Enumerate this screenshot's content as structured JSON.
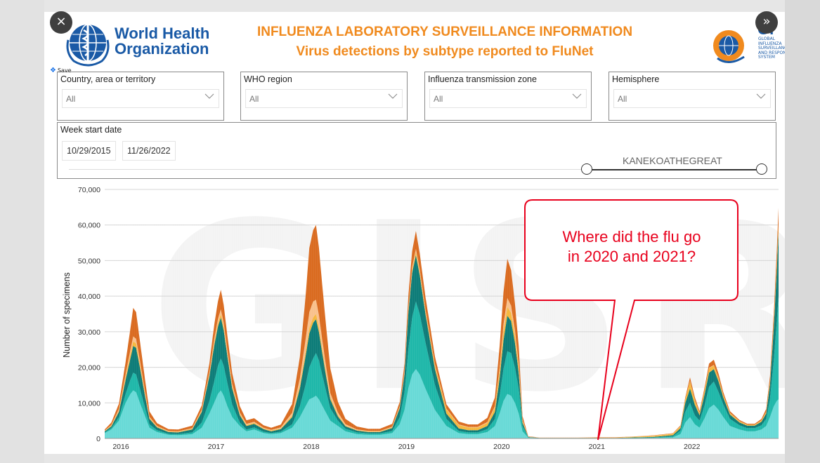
{
  "header": {
    "org_name_line1": "World Health",
    "org_name_line2": "Organization",
    "title": "INFLUENZA LABORATORY SURVEILLANCE INFORMATION",
    "subtitle": "Virus detections by subtype reported to FluNet",
    "gisrs_name": "GI",
    "gisrs_sub": "GLOBAL INFLUENZA SURVEILLANCE AND RESPONSE SYSTEM"
  },
  "toolbar": {
    "save_label": "Save",
    "close_icon": "×",
    "expand_icon": "»"
  },
  "filters": [
    {
      "label": "Country, area or territory",
      "value": "All"
    },
    {
      "label": "WHO region",
      "value": "All"
    },
    {
      "label": "Influenza transmission zone",
      "value": "All"
    },
    {
      "label": "Hemisphere",
      "value": "All"
    }
  ],
  "week_filter": {
    "label": "Week start date",
    "start": "10/29/2015",
    "end": "11/26/2022",
    "overlay_text": "KANEKOATHEGREAT"
  },
  "watermark": "GISRS",
  "callout": {
    "line1": "Where did the flu go",
    "line2": "in 2020 and 2021?"
  },
  "colors": {
    "title_orange": "#f08a1e",
    "who_blue": "#1a5aa6",
    "callout_red": "#e8001c",
    "series_light": "#66d9d6",
    "series_mid": "#1bb6a8",
    "series_dark": "#0a7a76",
    "series_yellow": "#f6b63b",
    "series_peach": "#f9c08a",
    "series_orange": "#d9691c"
  },
  "chart_data": {
    "type": "area",
    "ylabel": "Number of specimens",
    "ylim": [
      0,
      70000
    ],
    "yticks": [
      0,
      10000,
      20000,
      30000,
      40000,
      50000,
      60000,
      70000
    ],
    "ytick_labels": [
      "0",
      "10,000",
      "20,000",
      "30,000",
      "40,000",
      "50,000",
      "60,000",
      "70,000"
    ],
    "xlim": [
      2015.83,
      2022.91
    ],
    "xticks": [
      2016,
      2017,
      2018,
      2019,
      2020,
      2021,
      2022
    ],
    "xtick_labels": [
      "2016",
      "2017",
      "2018",
      "2019",
      "2020",
      "2021",
      "2022"
    ],
    "stacked": true,
    "x": [
      2015.83,
      2015.9,
      2015.98,
      2016.05,
      2016.1,
      2016.13,
      2016.16,
      2016.2,
      2016.25,
      2016.3,
      2016.38,
      2016.5,
      2016.6,
      2016.75,
      2016.85,
      2016.93,
      2016.98,
      2017.02,
      2017.05,
      2017.08,
      2017.12,
      2017.17,
      2017.25,
      2017.32,
      2017.4,
      2017.5,
      2017.58,
      2017.68,
      2017.8,
      2017.88,
      2017.94,
      2017.98,
      2018.02,
      2018.05,
      2018.08,
      2018.11,
      2018.15,
      2018.2,
      2018.28,
      2018.36,
      2018.48,
      2018.6,
      2018.72,
      2018.85,
      2018.93,
      2018.98,
      2019.02,
      2019.06,
      2019.1,
      2019.14,
      2019.2,
      2019.3,
      2019.42,
      2019.55,
      2019.65,
      2019.75,
      2019.85,
      2019.93,
      2019.98,
      2020.02,
      2020.06,
      2020.1,
      2020.14,
      2020.18,
      2020.22,
      2020.28,
      2020.4,
      2020.6,
      2020.8,
      2021.0,
      2021.2,
      2021.4,
      2021.6,
      2021.8,
      2021.88,
      2021.93,
      2021.98,
      2022.03,
      2022.08,
      2022.13,
      2022.18,
      2022.23,
      2022.28,
      2022.33,
      2022.4,
      2022.5,
      2022.58,
      2022.66,
      2022.73,
      2022.78,
      2022.82,
      2022.86,
      2022.89,
      2022.91
    ],
    "series": [
      {
        "name": "",
        "values": [
          1500,
          2500,
          5000,
          10000,
          12500,
          13500,
          13000,
          10000,
          6500,
          3000,
          1800,
          1000,
          900,
          1200,
          3000,
          7000,
          10000,
          12500,
          13500,
          12000,
          9000,
          6000,
          3500,
          2000,
          2500,
          1500,
          1200,
          1500,
          3000,
          6000,
          9000,
          11000,
          11500,
          12000,
          11000,
          9500,
          7500,
          5000,
          3500,
          2000,
          1200,
          1000,
          1000,
          1500,
          4000,
          8000,
          14000,
          18000,
          19500,
          18000,
          14000,
          8000,
          3500,
          1500,
          1200,
          1200,
          1800,
          3500,
          7000,
          10500,
          12500,
          12000,
          10000,
          7000,
          2000,
          200,
          50,
          50,
          50,
          50,
          50,
          100,
          150,
          300,
          1200,
          4500,
          6000,
          4000,
          3000,
          5500,
          8500,
          9500,
          8000,
          6000,
          3500,
          2500,
          2000,
          2000,
          2500,
          3500,
          6000,
          9000,
          10500,
          11000
        ]
      },
      {
        "name": "",
        "values": [
          200,
          400,
          1000,
          2500,
          4000,
          5000,
          5000,
          4000,
          2500,
          1000,
          500,
          300,
          300,
          500,
          1500,
          3500,
          6000,
          8000,
          9000,
          8500,
          6500,
          3500,
          1000,
          500,
          600,
          400,
          300,
          400,
          1000,
          3000,
          6000,
          9000,
          11000,
          12000,
          11000,
          9000,
          6500,
          3500,
          1500,
          700,
          500,
          400,
          400,
          600,
          2000,
          5000,
          11000,
          16000,
          19000,
          17000,
          13000,
          7000,
          2000,
          600,
          500,
          500,
          800,
          2000,
          5000,
          9000,
          12000,
          12000,
          10000,
          7000,
          1500,
          100,
          50,
          50,
          50,
          50,
          50,
          100,
          150,
          300,
          1000,
          3000,
          4000,
          2500,
          2000,
          3500,
          6000,
          6500,
          5000,
          3500,
          2000,
          1200,
          900,
          900,
          1200,
          2000,
          5000,
          13000,
          22000,
          29000
        ]
      },
      {
        "name": "",
        "values": [
          300,
          500,
          1500,
          4000,
          6000,
          7500,
          7500,
          6000,
          3500,
          1500,
          800,
          500,
          500,
          800,
          3000,
          7000,
          10000,
          11000,
          11500,
          10000,
          7500,
          4500,
          2000,
          1000,
          1000,
          700,
          500,
          700,
          2000,
          5000,
          8000,
          9500,
          10000,
          9500,
          8000,
          6500,
          4500,
          2500,
          1200,
          700,
          500,
          400,
          400,
          800,
          2500,
          5000,
          10000,
          12500,
          13000,
          11000,
          8000,
          4500,
          1500,
          700,
          600,
          600,
          900,
          2000,
          5000,
          8000,
          10000,
          9000,
          7000,
          4500,
          1000,
          100,
          50,
          50,
          50,
          50,
          50,
          100,
          150,
          300,
          700,
          2500,
          4000,
          3000,
          1500,
          3000,
          4000,
          3500,
          3000,
          2000,
          1200,
          800,
          700,
          700,
          1000,
          1500,
          4000,
          9000,
          14000,
          18000
        ]
      },
      {
        "name": "",
        "values": [
          100,
          200,
          300,
          800,
          1200,
          1300,
          1200,
          900,
          600,
          300,
          200,
          150,
          150,
          200,
          300,
          500,
          800,
          900,
          1000,
          900,
          700,
          600,
          400,
          300,
          300,
          200,
          200,
          200,
          400,
          800,
          1200,
          1500,
          1500,
          1500,
          1300,
          1100,
          900,
          600,
          400,
          200,
          150,
          150,
          150,
          200,
          300,
          500,
          700,
          800,
          900,
          800,
          700,
          900,
          1200,
          1000,
          800,
          800,
          900,
          1200,
          2000,
          2500,
          2500,
          2300,
          2000,
          1500,
          500,
          50,
          30,
          30,
          30,
          100,
          100,
          200,
          300,
          400,
          500,
          1000,
          2000,
          1200,
          600,
          1000,
          1200,
          1000,
          800,
          600,
          400,
          300,
          250,
          250,
          300,
          400,
          800,
          1200,
          1600,
          2000
        ]
      },
      {
        "name": "",
        "values": [
          100,
          200,
          500,
          800,
          1200,
          1400,
          1300,
          1000,
          700,
          300,
          200,
          150,
          150,
          200,
          300,
          600,
          1000,
          1200,
          1300,
          1200,
          1000,
          700,
          400,
          300,
          300,
          200,
          200,
          300,
          800,
          2000,
          3500,
          4500,
          4500,
          4000,
          3500,
          2800,
          2000,
          1200,
          700,
          400,
          200,
          150,
          150,
          200,
          300,
          500,
          700,
          800,
          900,
          800,
          600,
          400,
          200,
          150,
          150,
          150,
          200,
          400,
          1000,
          2000,
          2500,
          2000,
          1500,
          1000,
          300,
          50,
          30,
          30,
          30,
          30,
          30,
          30,
          50,
          80,
          100,
          100,
          150,
          150,
          100,
          100,
          150,
          150,
          150,
          100,
          80,
          60,
          50,
          50,
          80,
          100,
          150,
          200,
          250,
          300
        ]
      },
      {
        "name": "",
        "values": [
          300,
          700,
          1500,
          3500,
          6000,
          8000,
          7500,
          5500,
          3500,
          1500,
          800,
          500,
          500,
          700,
          1200,
          2500,
          4000,
          5000,
          5500,
          5000,
          4000,
          3000,
          1800,
          1000,
          1000,
          700,
          600,
          800,
          2500,
          6000,
          12000,
          18000,
          20000,
          21000,
          19000,
          16000,
          12000,
          7000,
          3000,
          1500,
          800,
          600,
          600,
          800,
          1200,
          2000,
          3500,
          4500,
          5000,
          4500,
          3500,
          2200,
          1200,
          800,
          700,
          700,
          1200,
          2500,
          6000,
          9000,
          11000,
          10000,
          7500,
          5000,
          1000,
          100,
          50,
          50,
          50,
          50,
          50,
          50,
          80,
          100,
          200,
          500,
          1000,
          800,
          500,
          800,
          1200,
          1500,
          1200,
          800,
          500,
          300,
          250,
          250,
          400,
          800,
          1500,
          2500,
          3500,
          4500
        ]
      }
    ]
  }
}
